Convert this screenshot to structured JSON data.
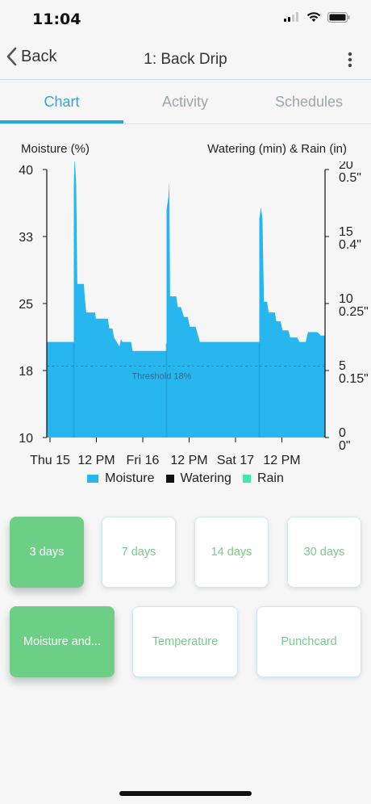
{
  "status": {
    "time": "11:04"
  },
  "nav": {
    "back_label": "Back",
    "title": "1: Back Drip"
  },
  "tabs": [
    {
      "label": "Chart",
      "active": true
    },
    {
      "label": "Activity",
      "active": false
    },
    {
      "label": "Schedules",
      "active": false
    }
  ],
  "chart_data": {
    "type": "area",
    "left_axis_label": "Moisture (%)",
    "right_axis_label": "Watering (min) & Rain (in)",
    "y_ticks": [
      "10",
      "18",
      "25",
      "33",
      "40"
    ],
    "right_ticks": [
      {
        "min": "0",
        "rain": "0\""
      },
      {
        "min": "5",
        "rain": "0.15\""
      },
      {
        "min": "10",
        "rain": "0.25\""
      },
      {
        "min": "15",
        "rain": "0.4\""
      },
      {
        "min": "20",
        "rain": "0.5\""
      }
    ],
    "x_ticks": [
      "Thu 15",
      "12 PM",
      "Fri 16",
      "12 PM",
      "Sat 17",
      "12 PM"
    ],
    "ylim": [
      10,
      40
    ],
    "xlim_hours": [
      0,
      72
    ],
    "threshold": {
      "value": 18,
      "label": "Threshold 18%"
    },
    "series": [
      {
        "name": "Moisture",
        "color": "#27b6ee",
        "points": [
          [
            0,
            20.7
          ],
          [
            7.0,
            20.7
          ],
          [
            7.0,
            38
          ],
          [
            7.2,
            41.5
          ],
          [
            7.6,
            38.5
          ],
          [
            7.9,
            27.2
          ],
          [
            9.6,
            27.2
          ],
          [
            9.8,
            25.8
          ],
          [
            10.2,
            24.0
          ],
          [
            12.5,
            24.0
          ],
          [
            12.7,
            23.3
          ],
          [
            15.8,
            23.3
          ],
          [
            16.2,
            22.2
          ],
          [
            17.0,
            22.2
          ],
          [
            17.4,
            21.2
          ],
          [
            18.8,
            20.2
          ],
          [
            19.2,
            21.0
          ],
          [
            19.6,
            20.7
          ],
          [
            21.8,
            20.7
          ],
          [
            22.2,
            19.7
          ],
          [
            27.0,
            19.7
          ],
          [
            31.0,
            19.7
          ],
          [
            31.0,
            35.5
          ],
          [
            31.5,
            37.0
          ],
          [
            31.7,
            38.7
          ],
          [
            31.9,
            25.8
          ],
          [
            33.5,
            25.8
          ],
          [
            33.9,
            24.6
          ],
          [
            34.7,
            24.6
          ],
          [
            35.5,
            23.5
          ],
          [
            36.5,
            23.5
          ],
          [
            37.0,
            22.4
          ],
          [
            38.5,
            22.4
          ],
          [
            39.6,
            20.7
          ],
          [
            46.0,
            20.7
          ],
          [
            55.0,
            20.7
          ],
          [
            55.0,
            34.5
          ],
          [
            55.4,
            35.8
          ],
          [
            55.8,
            34.5
          ],
          [
            56.2,
            25.2
          ],
          [
            57.0,
            25.2
          ],
          [
            57.4,
            24.0
          ],
          [
            59.0,
            24.0
          ],
          [
            59.4,
            23.0
          ],
          [
            60.5,
            23.0
          ],
          [
            61.0,
            22.0
          ],
          [
            62.5,
            22.0
          ],
          [
            63.0,
            21.2
          ],
          [
            64.8,
            21.2
          ],
          [
            65.4,
            20.7
          ],
          [
            67.0,
            20.7
          ],
          [
            67.6,
            21.8
          ],
          [
            70.0,
            21.8
          ],
          [
            71.0,
            21.4
          ],
          [
            72.0,
            21.4
          ]
        ]
      },
      {
        "name": "Watering",
        "color": "#111111",
        "points": []
      },
      {
        "name": "Rain",
        "color": "#3ee8b0",
        "points": []
      }
    ],
    "legend_position": "bottom"
  },
  "range_buttons": [
    {
      "label": "3 days",
      "selected": true
    },
    {
      "label": "7 days",
      "selected": false
    },
    {
      "label": "14 days",
      "selected": false
    },
    {
      "label": "30 days",
      "selected": false
    }
  ],
  "type_buttons": [
    {
      "label": "Moisture and...",
      "selected": true
    },
    {
      "label": "Temperature",
      "selected": false
    },
    {
      "label": "Punchcard",
      "selected": false
    }
  ]
}
